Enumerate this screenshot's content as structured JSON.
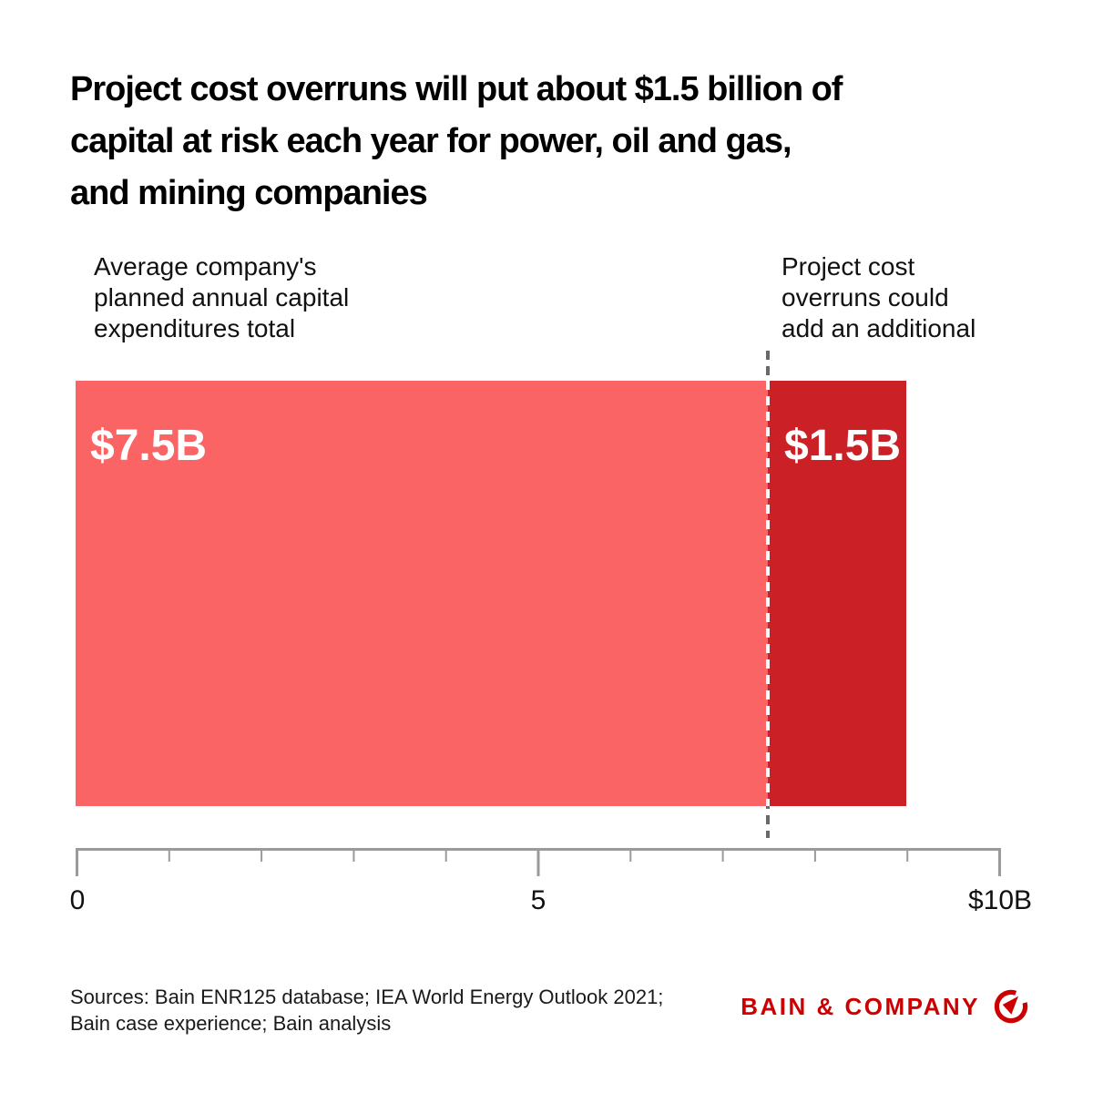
{
  "header": {
    "title_lines": [
      "Project cost overruns will put about $1.5 billion of",
      "capital at risk each year for power, oil and gas,",
      "and mining companies"
    ]
  },
  "annotations": {
    "left": {
      "lines": [
        "Average company's",
        "planned annual capital",
        "expenditures total"
      ]
    },
    "right": {
      "lines": [
        "Project cost",
        "overruns could",
        "add an additional"
      ]
    }
  },
  "chart_data": {
    "type": "bar",
    "orientation": "horizontal",
    "stacked": true,
    "title": "Project cost overruns will put about $1.5 billion of capital at risk each year for power, oil and gas, and mining companies",
    "series": [
      {
        "name": "Average company's planned annual capital expenditures total",
        "value": 7.5,
        "label": "$7.5B",
        "color": "#FB6464"
      },
      {
        "name": "Project cost overruns could add an additional",
        "value": 1.5,
        "label": "$1.5B",
        "color": "#CB2026"
      }
    ],
    "xlim": [
      0,
      10
    ],
    "axis": {
      "ticks": [
        0,
        1,
        2,
        3,
        4,
        5,
        6,
        7,
        8,
        9,
        10
      ],
      "major_ticks": [
        0,
        5,
        10
      ],
      "labels": [
        {
          "value": 0,
          "text": "0"
        },
        {
          "value": 5,
          "text": "5"
        },
        {
          "value": 10,
          "text": "$10B"
        }
      ],
      "color": "#9A9A9A"
    },
    "divider_at": 7.5,
    "divider_color": "#666A6E",
    "grid": false,
    "legend": false
  },
  "footer": {
    "sources_lines": [
      "Sources: Bain ENR125 database; IEA World Energy Outlook 2021;",
      "Bain case experience; Bain analysis"
    ],
    "logo_text": "BAIN & COMPANY",
    "brand_color": "#CC0000"
  }
}
